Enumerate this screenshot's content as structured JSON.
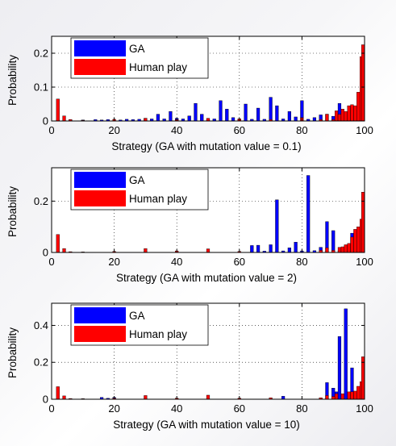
{
  "chart_data": [
    {
      "type": "bar",
      "xlabel": "Strategy (GA with mutation value = 0.1)",
      "ylabel": "Probability",
      "xlim": [
        0,
        100
      ],
      "ylim": [
        0,
        0.25
      ],
      "xticks": [
        0,
        20,
        40,
        60,
        80,
        100
      ],
      "yticks": [
        0,
        0.1,
        0.2
      ],
      "ytick_labels": [
        "0",
        "0.1",
        "0.2"
      ],
      "grid": true,
      "legend_position": "top-left",
      "series": [
        {
          "name": "GA",
          "color": "#0000ff",
          "points": [
            [
              2,
              0.003
            ],
            [
              6,
              0.004
            ],
            [
              10,
              0.003
            ],
            [
              14,
              0.004
            ],
            [
              16,
              0.003
            ],
            [
              18,
              0.004
            ],
            [
              22,
              0.003
            ],
            [
              24,
              0.005
            ],
            [
              26,
              0.004
            ],
            [
              28,
              0.005
            ],
            [
              30,
              0.008
            ],
            [
              32,
              0.006
            ],
            [
              34,
              0.02
            ],
            [
              36,
              0.006
            ],
            [
              38,
              0.028
            ],
            [
              40,
              0.008
            ],
            [
              42,
              0.006
            ],
            [
              44,
              0.015
            ],
            [
              46,
              0.052
            ],
            [
              48,
              0.02
            ],
            [
              50,
              0.005
            ],
            [
              52,
              0.006
            ],
            [
              54,
              0.06
            ],
            [
              56,
              0.035
            ],
            [
              58,
              0.01
            ],
            [
              60,
              0.006
            ],
            [
              62,
              0.05
            ],
            [
              64,
              0.005
            ],
            [
              66,
              0.038
            ],
            [
              68,
              0.005
            ],
            [
              70,
              0.07
            ],
            [
              72,
              0.045
            ],
            [
              74,
              0.006
            ],
            [
              76,
              0.028
            ],
            [
              78,
              0.012
            ],
            [
              80,
              0.06
            ],
            [
              82,
              0.005
            ],
            [
              84,
              0.01
            ],
            [
              86,
              0.018
            ],
            [
              88,
              0.02
            ],
            [
              90,
              0.014
            ],
            [
              92,
              0.052
            ],
            [
              94,
              0.026
            ],
            [
              96,
              0.04
            ],
            [
              98,
              0.04
            ]
          ]
        },
        {
          "name": "Human play",
          "color": "#ff0000",
          "points": [
            [
              2,
              0.065
            ],
            [
              4,
              0.015
            ],
            [
              6,
              0.004
            ],
            [
              10,
              0.002
            ],
            [
              20,
              0.005
            ],
            [
              30,
              0.008
            ],
            [
              40,
              0.004
            ],
            [
              50,
              0.008
            ],
            [
              60,
              0.006
            ],
            [
              70,
              0.004
            ],
            [
              80,
              0.01
            ],
            [
              86,
              0.004
            ],
            [
              88,
              0.02
            ],
            [
              90,
              0.004
            ],
            [
              91,
              0.03
            ],
            [
              92,
              0.02
            ],
            [
              93,
              0.035
            ],
            [
              94,
              0.028
            ],
            [
              95,
              0.045
            ],
            [
              96,
              0.048
            ],
            [
              97,
              0.045
            ],
            [
              98,
              0.085
            ],
            [
              99,
              0.19
            ],
            [
              100,
              0.225
            ]
          ]
        }
      ]
    },
    {
      "type": "bar",
      "xlabel": "Strategy (GA with mutation value = 2)",
      "ylabel": "Probability",
      "xlim": [
        0,
        100
      ],
      "ylim": [
        0,
        0.33
      ],
      "xticks": [
        0,
        20,
        40,
        60,
        80,
        100
      ],
      "yticks": [
        0,
        0.2
      ],
      "ytick_labels": [
        "0",
        "0.2"
      ],
      "grid": true,
      "legend_position": "top-left",
      "series": [
        {
          "name": "GA",
          "color": "#0000ff",
          "points": [
            [
              64,
              0.027
            ],
            [
              66,
              0.028
            ],
            [
              68,
              0.005
            ],
            [
              70,
              0.03
            ],
            [
              72,
              0.205
            ],
            [
              74,
              0.006
            ],
            [
              76,
              0.018
            ],
            [
              78,
              0.04
            ],
            [
              80,
              0.006
            ],
            [
              82,
              0.3
            ],
            [
              84,
              0.007
            ],
            [
              86,
              0.02
            ],
            [
              88,
              0.12
            ],
            [
              90,
              0.085
            ],
            [
              92,
              0.007
            ],
            [
              94,
              0.025
            ],
            [
              96,
              0.075
            ]
          ]
        },
        {
          "name": "Human play",
          "color": "#ff0000",
          "points": [
            [
              2,
              0.07
            ],
            [
              4,
              0.015
            ],
            [
              6,
              0.003
            ],
            [
              10,
              0.002
            ],
            [
              20,
              0.004
            ],
            [
              30,
              0.015
            ],
            [
              40,
              0.006
            ],
            [
              50,
              0.014
            ],
            [
              60,
              0.004
            ],
            [
              86,
              0.008
            ],
            [
              88,
              0.018
            ],
            [
              90,
              0.008
            ],
            [
              92,
              0.02
            ],
            [
              93,
              0.022
            ],
            [
              94,
              0.03
            ],
            [
              95,
              0.035
            ],
            [
              96,
              0.06
            ],
            [
              97,
              0.09
            ],
            [
              98,
              0.1
            ],
            [
              99,
              0.13
            ],
            [
              100,
              0.235
            ]
          ]
        }
      ]
    },
    {
      "type": "bar",
      "xlabel": "Strategy (GA with mutation value = 10)",
      "ylabel": "Probability",
      "xlim": [
        0,
        100
      ],
      "ylim": [
        0,
        0.52
      ],
      "xticks": [
        0,
        20,
        40,
        60,
        80,
        100
      ],
      "yticks": [
        0,
        0.2,
        0.4
      ],
      "ytick_labels": [
        "0",
        "0.2",
        "0.4"
      ],
      "grid": true,
      "legend_position": "top-left",
      "series": [
        {
          "name": "GA",
          "color": "#0000ff",
          "points": [
            [
              16,
              0.01
            ],
            [
              18,
              0.005
            ],
            [
              20,
              0.01
            ],
            [
              74,
              0.016
            ],
            [
              88,
              0.09
            ],
            [
              90,
              0.06
            ],
            [
              91,
              0.04
            ],
            [
              92,
              0.34
            ],
            [
              94,
              0.49
            ],
            [
              96,
              0.17
            ]
          ]
        },
        {
          "name": "Human play",
          "color": "#ff0000",
          "points": [
            [
              2,
              0.068
            ],
            [
              4,
              0.018
            ],
            [
              6,
              0.004
            ],
            [
              10,
              0.003
            ],
            [
              20,
              0.006
            ],
            [
              30,
              0.02
            ],
            [
              40,
              0.006
            ],
            [
              50,
              0.022
            ],
            [
              60,
              0.006
            ],
            [
              70,
              0.008
            ],
            [
              86,
              0.008
            ],
            [
              88,
              0.02
            ],
            [
              90,
              0.015
            ],
            [
              91,
              0.03
            ],
            [
              93,
              0.03
            ],
            [
              95,
              0.04
            ],
            [
              96,
              0.04
            ],
            [
              97,
              0.044
            ],
            [
              98,
              0.07
            ],
            [
              99,
              0.095
            ],
            [
              100,
              0.23
            ]
          ]
        }
      ]
    }
  ]
}
